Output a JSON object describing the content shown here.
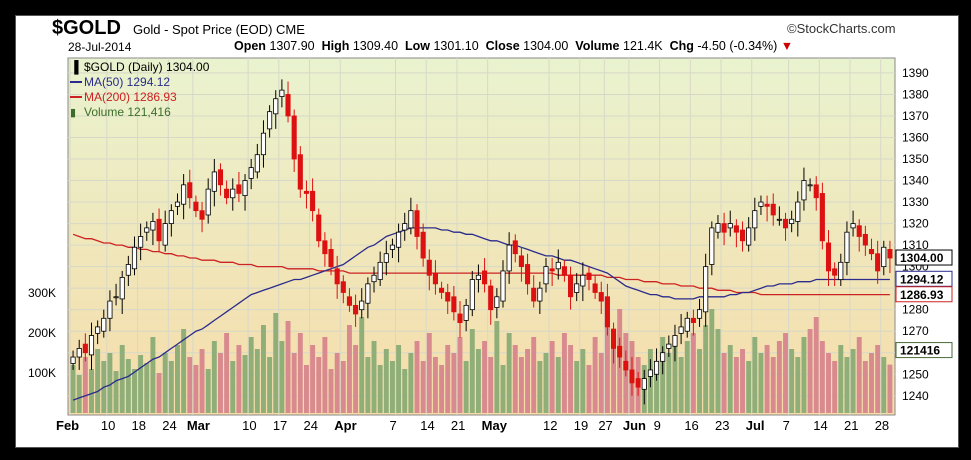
{
  "header": {
    "symbol": "$GOLD",
    "description": "Gold - Spot Price (EOD)  CME",
    "date": "28-Jul-2014",
    "open_label": "Open",
    "open": "1307.90",
    "high_label": "High",
    "high": "1309.40",
    "low_label": "Low",
    "low": "1301.10",
    "close_label": "Close",
    "close": "1304.00",
    "volume_label": "Volume",
    "volume": "121.4K",
    "chg_label": "Chg",
    "chg": "-4.50 (-0.34%)",
    "chg_marker": "▼",
    "brand": "©StockCharts.com"
  },
  "legend": {
    "price": "$GOLD (Daily) 1304.00",
    "ma50": "MA(50) 1294.12",
    "ma200": "MA(200) 1286.93",
    "volume": "Volume 121,416"
  },
  "colors": {
    "up": "#000000",
    "down": "#dd1111",
    "ma50": "#2b2b8c",
    "ma200": "#cc2222",
    "vol_up": "#8fae78",
    "vol_down": "#d98a8e",
    "bg_top": "#e9f3cf",
    "bg_bottom": "#f6dca9"
  },
  "chart_data": {
    "type": "candlestick",
    "y_ticks": [
      1240,
      1250,
      1260,
      1270,
      1280,
      1290,
      1300,
      1310,
      1320,
      1330,
      1340,
      1350,
      1360,
      1370,
      1380,
      1390
    ],
    "ylim": [
      1232,
      1396
    ],
    "volume_ticks": [
      "100K",
      "200K",
      "300K"
    ],
    "volume_tick_values": [
      100000,
      200000,
      300000
    ],
    "x_ticks": [
      "Feb",
      "10",
      "18",
      "24",
      "Mar",
      "10",
      "17",
      "24",
      "Apr",
      "7",
      "14",
      "21",
      "May",
      "12",
      "19",
      "27",
      "Jun",
      "9",
      "16",
      "23",
      "Jul",
      "7",
      "14",
      "21",
      "28"
    ],
    "x_tick_index": [
      0,
      6,
      11,
      16,
      20,
      29,
      34,
      39,
      44,
      53,
      58,
      63,
      68,
      78,
      83,
      87,
      91,
      96,
      101,
      106,
      111,
      117,
      122,
      127,
      132
    ],
    "last_price_label": "1304.00",
    "ma50_label": "1294.12",
    "ma200_label": "1286.93",
    "volume_label": "121416",
    "close": [
      1258,
      1262,
      1260,
      1268,
      1272,
      1276,
      1284,
      1286,
      1295,
      1301,
      1309,
      1314,
      1318,
      1321,
      1312,
      1320,
      1326,
      1330,
      1338,
      1332,
      1326,
      1322,
      1336,
      1344,
      1338,
      1332,
      1336,
      1334,
      1340,
      1346,
      1352,
      1362,
      1372,
      1378,
      1382,
      1370,
      1350,
      1336,
      1334,
      1326,
      1312,
      1306,
      1300,
      1292,
      1288,
      1282,
      1278,
      1284,
      1292,
      1296,
      1302,
      1306,
      1310,
      1316,
      1320,
      1326,
      1314,
      1304,
      1296,
      1292,
      1288,
      1284,
      1279,
      1274,
      1282,
      1294,
      1296,
      1292,
      1280,
      1286,
      1298,
      1310,
      1306,
      1300,
      1292,
      1284,
      1290,
      1300,
      1298,
      1302,
      1296,
      1286,
      1292,
      1296,
      1294,
      1288,
      1284,
      1272,
      1262,
      1258,
      1252,
      1246,
      1244,
      1248,
      1252,
      1256,
      1260,
      1264,
      1268,
      1272,
      1276,
      1274,
      1280,
      1300,
      1318,
      1320,
      1316,
      1320,
      1316,
      1312,
      1318,
      1326,
      1330,
      1328,
      1324,
      1322,
      1318,
      1322,
      1330,
      1340,
      1338,
      1332,
      1312,
      1298,
      1296,
      1302,
      1316,
      1320,
      1314,
      1310,
      1306,
      1298,
      1309,
      1304
    ],
    "ma50": [
      1238,
      1239,
      1240,
      1241,
      1242,
      1244,
      1245,
      1247,
      1248,
      1249,
      1251,
      1253,
      1255,
      1257,
      1258,
      1260,
      1262,
      1264,
      1266,
      1268,
      1270,
      1271,
      1273,
      1275,
      1277,
      1279,
      1281,
      1283,
      1285,
      1287,
      1288,
      1289,
      1290,
      1291,
      1292,
      1293,
      1294,
      1294,
      1295,
      1296,
      1297,
      1298,
      1299,
      1300,
      1301,
      1303,
      1305,
      1307,
      1309,
      1310,
      1312,
      1314,
      1315,
      1316,
      1317,
      1318,
      1318,
      1318,
      1318,
      1318,
      1317,
      1317,
      1316,
      1316,
      1315,
      1315,
      1314,
      1313,
      1312,
      1312,
      1311,
      1310,
      1310,
      1309,
      1308,
      1307,
      1306,
      1305,
      1305,
      1304,
      1303,
      1303,
      1302,
      1301,
      1300,
      1299,
      1298,
      1297,
      1295,
      1293,
      1291,
      1290,
      1289,
      1288,
      1287,
      1287,
      1286,
      1286,
      1285,
      1285,
      1285,
      1285,
      1286,
      1286,
      1286,
      1286,
      1286,
      1287,
      1287,
      1288,
      1288,
      1289,
      1290,
      1291,
      1291,
      1292,
      1292,
      1292,
      1293,
      1293,
      1293,
      1294,
      1294,
      1294,
      1294,
      1294,
      1294,
      1294,
      1294,
      1294,
      1294,
      1294,
      1294,
      1294
    ],
    "ma200": [
      1315,
      1314,
      1313,
      1313,
      1312,
      1311,
      1311,
      1310,
      1310,
      1309,
      1309,
      1308,
      1308,
      1307,
      1307,
      1306,
      1306,
      1305,
      1305,
      1304,
      1304,
      1303,
      1303,
      1303,
      1302,
      1302,
      1302,
      1301,
      1301,
      1301,
      1300,
      1300,
      1300,
      1300,
      1300,
      1299,
      1299,
      1299,
      1299,
      1299,
      1298,
      1298,
      1298,
      1298,
      1298,
      1297,
      1297,
      1297,
      1297,
      1297,
      1297,
      1297,
      1297,
      1297,
      1297,
      1297,
      1297,
      1297,
      1297,
      1297,
      1297,
      1297,
      1297,
      1297,
      1297,
      1297,
      1297,
      1297,
      1297,
      1297,
      1297,
      1297,
      1297,
      1297,
      1297,
      1297,
      1297,
      1297,
      1297,
      1296,
      1296,
      1296,
      1296,
      1296,
      1296,
      1296,
      1296,
      1295,
      1295,
      1295,
      1294,
      1294,
      1294,
      1293,
      1293,
      1293,
      1292,
      1292,
      1292,
      1291,
      1291,
      1291,
      1290,
      1290,
      1290,
      1289,
      1289,
      1289,
      1288,
      1288,
      1288,
      1288,
      1287,
      1287,
      1287,
      1287,
      1287,
      1287,
      1287,
      1287,
      1287,
      1287,
      1287,
      1287,
      1287,
      1287,
      1287,
      1287,
      1287,
      1287,
      1287,
      1287,
      1287,
      1287
    ],
    "volume": [
      120,
      95,
      140,
      110,
      160,
      130,
      150,
      105,
      170,
      135,
      110,
      145,
      125,
      190,
      100,
      150,
      130,
      170,
      210,
      140,
      120,
      160,
      110,
      180,
      150,
      200,
      130,
      170,
      145,
      190,
      160,
      220,
      140,
      250,
      180,
      230,
      150,
      200,
      120,
      170,
      140,
      190,
      110,
      150,
      130,
      220,
      170,
      240,
      140,
      180,
      120,
      160,
      130,
      170,
      110,
      150,
      180,
      130,
      200,
      140,
      120,
      170,
      150,
      190,
      130,
      210,
      160,
      180,
      140,
      230,
      120,
      200,
      170,
      140,
      160,
      190,
      130,
      150,
      180,
      140,
      200,
      170,
      130,
      160,
      120,
      190,
      150,
      230,
      170,
      260,
      200,
      180,
      140,
      120,
      160,
      130,
      190,
      150,
      170,
      140,
      180,
      200,
      160,
      220,
      260,
      210,
      150,
      170,
      140,
      160,
      130,
      190,
      150,
      170,
      140,
      180,
      200,
      160,
      140,
      190,
      210,
      240,
      180,
      150,
      130,
      170,
      140,
      160,
      190,
      130,
      150,
      170,
      140,
      121
    ]
  }
}
